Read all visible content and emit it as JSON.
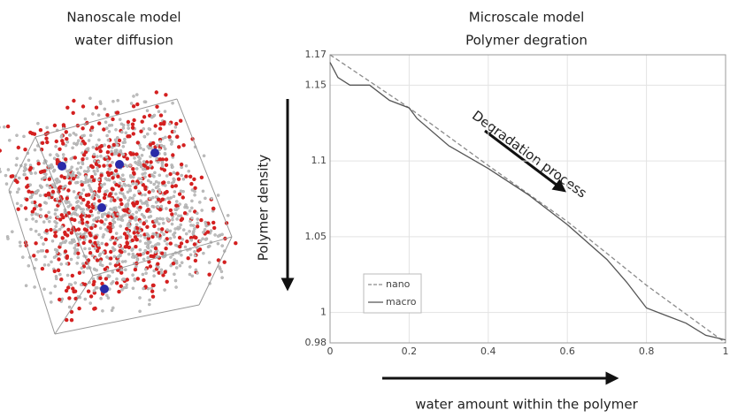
{
  "nanoscale_panel": {
    "title": "Nanoscale model",
    "subtitle": "water diffusion"
  },
  "chart_data": {
    "type": "line",
    "title": "Microscale model",
    "subtitle": "Polymer degration",
    "y_label": "Polymer density",
    "x_label": "water amount within the polymer",
    "annotation": "Degradation process",
    "xlim": [
      0,
      1
    ],
    "xticks": [
      0,
      0.2,
      0.4,
      0.6,
      0.8,
      1
    ],
    "ylim": [
      0.98,
      1.17
    ],
    "yticks": [
      0.98,
      1,
      1.05,
      1.1,
      1.15,
      1.17
    ],
    "grid": true,
    "legend": "lower left",
    "series": [
      {
        "name": "nano",
        "color": "#8a8a8a",
        "dashed": true,
        "x": [
          0,
          0.2,
          0.4,
          0.6,
          0.8,
          1
        ],
        "values": [
          1.17,
          1.135,
          1.097,
          1.06,
          1.018,
          0.98
        ]
      },
      {
        "name": "macro",
        "color": "#555555",
        "dashed": false,
        "x": [
          0,
          0.02,
          0.05,
          0.1,
          0.15,
          0.2,
          0.22,
          0.3,
          0.4,
          0.5,
          0.6,
          0.7,
          0.75,
          0.8,
          0.85,
          0.9,
          0.95,
          1
        ],
        "values": [
          1.165,
          1.155,
          1.15,
          1.15,
          1.14,
          1.135,
          1.128,
          1.11,
          1.095,
          1.078,
          1.058,
          1.035,
          1.02,
          1.003,
          0.998,
          0.993,
          0.985,
          0.982
        ]
      }
    ]
  }
}
